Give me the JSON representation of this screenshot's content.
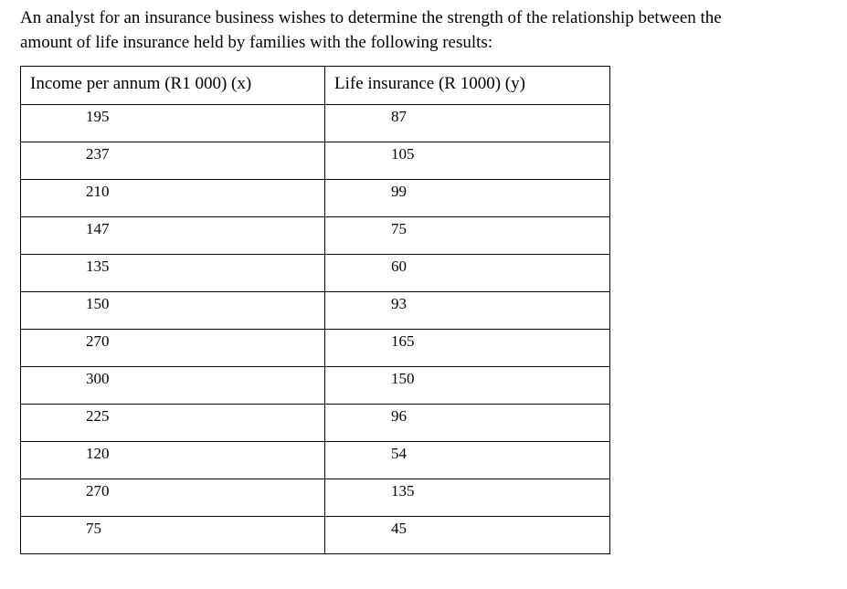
{
  "intro": {
    "line1": "An analyst for an insurance business wishes to determine the strength of the relationship between the",
    "line2": "amount of life insurance held by families with the following results:"
  },
  "table": {
    "headers": [
      "Income per annum (R1 000) (x)",
      "Life insurance (R 1000) (y)"
    ],
    "rows": [
      [
        "195",
        "87"
      ],
      [
        "237",
        "105"
      ],
      [
        "210",
        "99"
      ],
      [
        "147",
        "75"
      ],
      [
        "135",
        "60"
      ],
      [
        "150",
        "93"
      ],
      [
        "270",
        "165"
      ],
      [
        "300",
        "150"
      ],
      [
        "225",
        "96"
      ],
      [
        "120",
        "54"
      ],
      [
        "270",
        "135"
      ],
      [
        "75",
        "45"
      ]
    ]
  }
}
